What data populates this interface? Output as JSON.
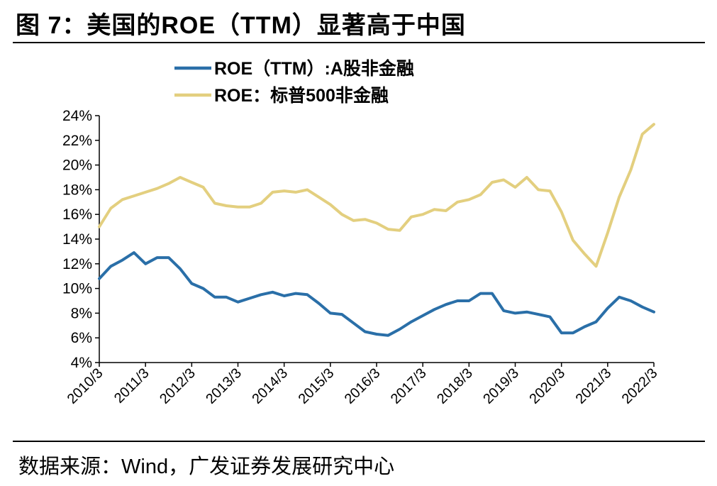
{
  "figure": {
    "title": "图 7：美国的ROE（TTM）显著高于中国",
    "source": "数据来源：Wind，广发证券发展研究中心"
  },
  "chart_data": {
    "type": "line",
    "title": "图 7：美国的ROE（TTM）显著高于中国",
    "xlabel": "",
    "ylabel": "",
    "ylim": [
      4,
      24
    ],
    "y_unit": "%",
    "y_ticks": [
      "4%",
      "6%",
      "8%",
      "10%",
      "12%",
      "14%",
      "16%",
      "18%",
      "20%",
      "22%",
      "24%"
    ],
    "x_tick_labels": [
      "2010/3",
      "2011/3",
      "2012/3",
      "2013/3",
      "2014/3",
      "2015/3",
      "2016/3",
      "2017/3",
      "2018/3",
      "2019/3",
      "2020/3",
      "2021/3",
      "2022/3"
    ],
    "x": [
      "2010Q1",
      "2010Q2",
      "2010Q3",
      "2010Q4",
      "2011Q1",
      "2011Q2",
      "2011Q3",
      "2011Q4",
      "2012Q1",
      "2012Q2",
      "2012Q3",
      "2012Q4",
      "2013Q1",
      "2013Q2",
      "2013Q3",
      "2013Q4",
      "2014Q1",
      "2014Q2",
      "2014Q3",
      "2014Q4",
      "2015Q1",
      "2015Q2",
      "2015Q3",
      "2015Q4",
      "2016Q1",
      "2016Q2",
      "2016Q3",
      "2016Q4",
      "2017Q1",
      "2017Q2",
      "2017Q3",
      "2017Q4",
      "2018Q1",
      "2018Q2",
      "2018Q3",
      "2018Q4",
      "2019Q1",
      "2019Q2",
      "2019Q3",
      "2019Q4",
      "2020Q1",
      "2020Q2",
      "2020Q3",
      "2020Q4",
      "2021Q1",
      "2021Q2",
      "2021Q3",
      "2021Q4",
      "2022Q1"
    ],
    "series": [
      {
        "name": "ROE（TTM）:A股非金融",
        "color": "#2a6fa8",
        "values": [
          10.8,
          11.8,
          12.3,
          12.9,
          12.0,
          12.5,
          12.5,
          11.6,
          10.4,
          10.0,
          9.3,
          9.3,
          8.9,
          9.2,
          9.5,
          9.7,
          9.4,
          9.6,
          9.5,
          8.8,
          8.0,
          7.9,
          7.2,
          6.5,
          6.3,
          6.2,
          6.7,
          7.3,
          7.8,
          8.3,
          8.7,
          9.0,
          9.0,
          9.6,
          9.6,
          8.2,
          8.0,
          8.1,
          7.9,
          7.7,
          6.4,
          6.4,
          6.9,
          7.3,
          8.4,
          9.3,
          9.0,
          8.5,
          8.1
        ]
      },
      {
        "name": "ROE：标普500非金融",
        "color": "#e3cf7f",
        "values": [
          15.0,
          16.5,
          17.2,
          17.5,
          17.8,
          18.1,
          18.5,
          19.0,
          18.6,
          18.2,
          16.9,
          16.7,
          16.6,
          16.6,
          16.9,
          17.8,
          17.9,
          17.8,
          18.0,
          17.4,
          16.8,
          16.0,
          15.5,
          15.6,
          15.3,
          14.8,
          14.7,
          15.8,
          16.0,
          16.4,
          16.3,
          17.0,
          17.2,
          17.6,
          18.6,
          18.8,
          18.2,
          19.0,
          18.0,
          17.9,
          16.2,
          13.9,
          12.8,
          11.8,
          14.5,
          17.4,
          19.6,
          22.5,
          23.3
        ]
      }
    ],
    "legend": "top-left"
  }
}
